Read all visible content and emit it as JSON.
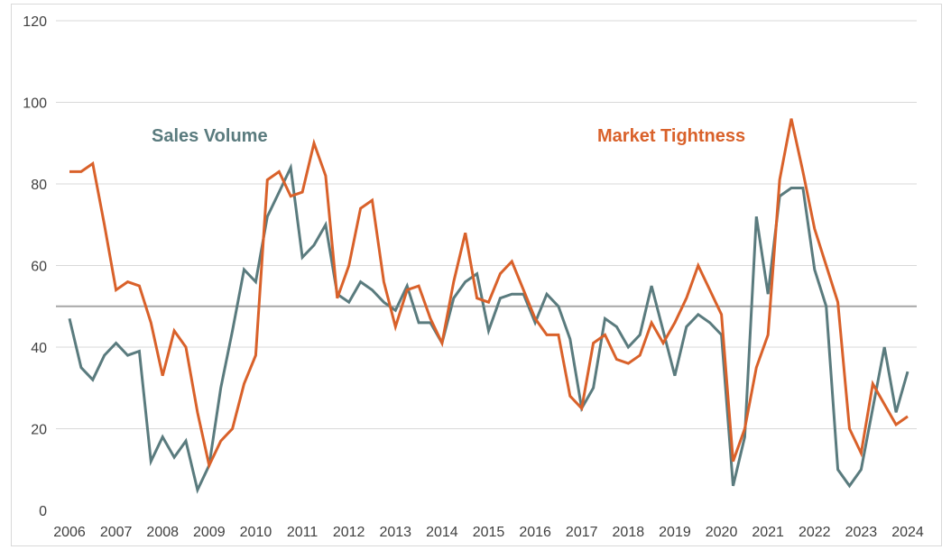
{
  "chart_data": {
    "type": "line",
    "title": "",
    "xlabel": "",
    "ylabel": "",
    "ylim": [
      0,
      120
    ],
    "yticks": [
      "0",
      "20",
      "40",
      "60",
      "80",
      "100",
      "120"
    ],
    "xticks": [
      "2006",
      "2007",
      "2008",
      "2009",
      "2010",
      "2011",
      "2012",
      "2013",
      "2014",
      "2015",
      "2016",
      "2017",
      "2018",
      "2019",
      "2020",
      "2021",
      "2022",
      "2023",
      "2024"
    ],
    "x_range": [
      2006,
      2024
    ],
    "frequency": "quarterly",
    "grid": "horizontal",
    "reference_line": {
      "value": 50,
      "color": "#a6a6a6"
    },
    "series": [
      {
        "name": "Sales Volume",
        "color": "#5a7b7e",
        "values": [
          47,
          35,
          32,
          38,
          41,
          38,
          39,
          12,
          18,
          13,
          17,
          5,
          11,
          30,
          44,
          59,
          56,
          72,
          78,
          84,
          62,
          65,
          70,
          53,
          51,
          56,
          54,
          51,
          49,
          55,
          46,
          46,
          41,
          52,
          56,
          58,
          44,
          52,
          53,
          53,
          46,
          53,
          50,
          42,
          25,
          30,
          47,
          45,
          40,
          43,
          55,
          44,
          33,
          45,
          48,
          46,
          43,
          6,
          18,
          72,
          53,
          77,
          79,
          79,
          59,
          50,
          10,
          6,
          10,
          25,
          40,
          24,
          34
        ]
      },
      {
        "name": "Market Tightness",
        "color": "#d9612a",
        "values": [
          83,
          83,
          85,
          70,
          54,
          56,
          55,
          46,
          33,
          44,
          40,
          24,
          11,
          17,
          20,
          31,
          38,
          81,
          83,
          77,
          78,
          90,
          82,
          52,
          60,
          74,
          76,
          56,
          45,
          54,
          55,
          47,
          41,
          56,
          68,
          52,
          51,
          58,
          61,
          54,
          47,
          43,
          43,
          28,
          25,
          41,
          43,
          37,
          36,
          38,
          46,
          41,
          46,
          52,
          60,
          54,
          48,
          12,
          20,
          35,
          43,
          81,
          96,
          83,
          69,
          60,
          51,
          20,
          14,
          31,
          26,
          21,
          23
        ]
      }
    ]
  }
}
